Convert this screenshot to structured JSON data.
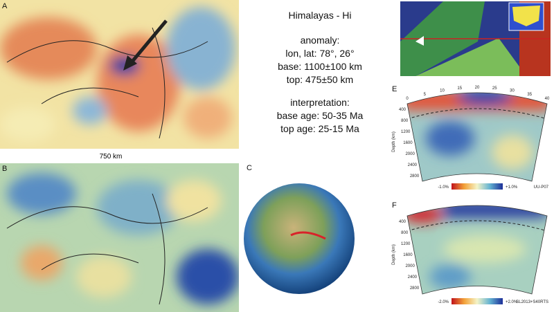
{
  "panels": {
    "a": "A",
    "b": "B",
    "c": "C",
    "e": "E",
    "f": "F"
  },
  "scale_label": "750 km",
  "info": {
    "title": "Himalayas - Hi",
    "anomaly_heading": "anomaly:",
    "lonlat": "lon, lat: 78°, 26°",
    "base": "base: 1100±100 km",
    "top": "top: 475±50 km",
    "interpretation_heading": "interpretation:",
    "base_age": "base age: 50-35 Ma",
    "top_age": "top age: 25-15 Ma"
  },
  "section_e": {
    "distance_ticks": [
      "0",
      "5",
      "10",
      "15",
      "20",
      "25",
      "30",
      "35",
      "40"
    ],
    "depth_ticks": [
      "400",
      "800",
      "1200",
      "1600",
      "2000",
      "2400",
      "2800"
    ],
    "depth_label": "Depth (km)",
    "scale_min": "-1.0%",
    "scale_max": "+1.0%",
    "model": "UU-P07"
  },
  "section_f": {
    "depth_ticks": [
      "400",
      "800",
      "1200",
      "1600",
      "2000",
      "2400",
      "2800"
    ],
    "depth_label": "Depth (km)",
    "scale_min": "-2.0%",
    "scale_max": "+2.0%",
    "model": "SL2013+S40RTS"
  }
}
